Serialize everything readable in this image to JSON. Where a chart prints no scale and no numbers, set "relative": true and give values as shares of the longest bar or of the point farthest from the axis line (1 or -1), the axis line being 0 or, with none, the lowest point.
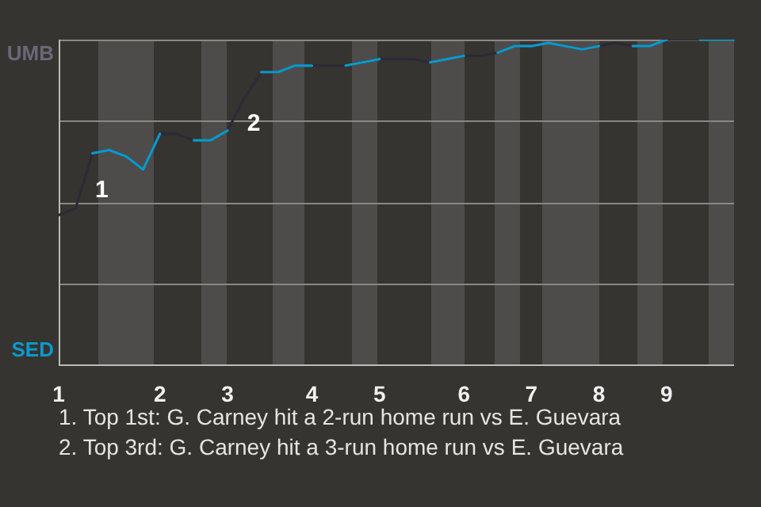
{
  "chart_data": {
    "type": "line",
    "relative": true,
    "categories": [
      "1",
      null,
      null,
      null,
      null,
      null,
      "2",
      null,
      null,
      null,
      "3",
      null,
      null,
      null,
      null,
      "4",
      null,
      null,
      null,
      "5",
      null,
      null,
      null,
      null,
      "6",
      null,
      null,
      null,
      "7",
      null,
      null,
      null,
      "8",
      null,
      null,
      null,
      "9",
      null,
      null,
      null,
      null
    ],
    "series": [
      {
        "color": "#2c2a36",
        "values": [
          0.46,
          0.48,
          0.65,
          0.66,
          0.64,
          0.6,
          0.71,
          0.71,
          0.69,
          0.69,
          0.72,
          0.82,
          0.9,
          0.9,
          0.92,
          0.92,
          0.92,
          0.92,
          0.93,
          0.94,
          0.94,
          0.94,
          0.93,
          0.94,
          0.95,
          0.95,
          0.96,
          0.98,
          0.98,
          0.99,
          0.98,
          0.97,
          0.98,
          0.99,
          0.98,
          0.98,
          1.0,
          1.0,
          1.0,
          1.0,
          1.0
        ]
      },
      {
        "color": "#0b99cc",
        "values": [
          null,
          null,
          0.65,
          0.66,
          0.64,
          0.6,
          0.71,
          null,
          0.69,
          0.69,
          0.72,
          null,
          0.9,
          0.9,
          0.92,
          0.92,
          null,
          0.92,
          0.93,
          0.94,
          null,
          null,
          0.93,
          0.94,
          0.95,
          null,
          0.96,
          0.98,
          0.98,
          0.99,
          0.98,
          0.97,
          0.98,
          null,
          0.98,
          0.98,
          1.0,
          null,
          1.0,
          1.0,
          1.0
        ]
      }
    ],
    "grid": "y",
    "marker": "none",
    "annotations": [
      "UMB",
      "SED",
      "1",
      "2",
      "1. Top 1st: G. Carney hit a 2-run home run vs E. Guevara",
      "2. Top 3rd: G. Carney hit a 3-run home run vs E. Guevara"
    ]
  }
}
